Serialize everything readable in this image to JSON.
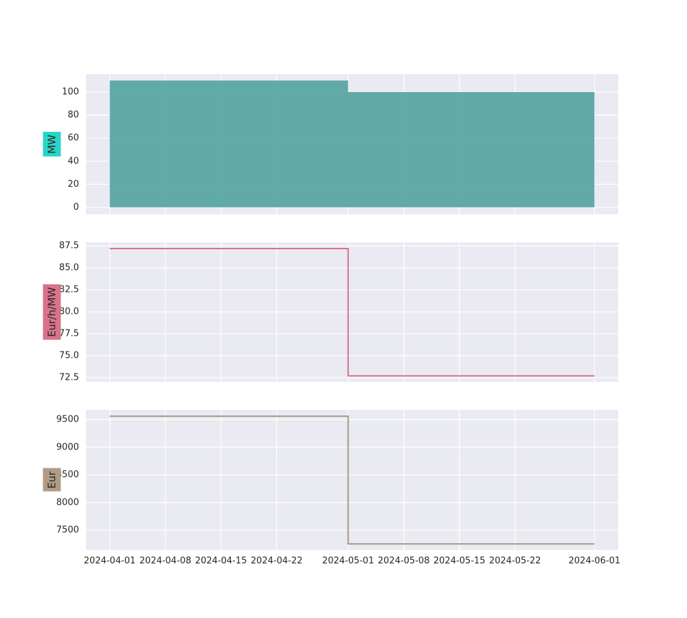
{
  "chart_data": [
    {
      "type": "area",
      "ylabel": "MW",
      "label_color": "#2ad4c8",
      "color": "#5aa6a4",
      "x": [
        "2024-04-01",
        "2024-05-01",
        "2024-06-01"
      ],
      "values": [
        110,
        100,
        100
      ],
      "xlim": [
        "2024-03-29",
        "2024-06-04"
      ],
      "ylim": [
        -6,
        115.5
      ],
      "yticks": [
        0,
        20,
        40,
        60,
        80,
        100
      ],
      "grid": true
    },
    {
      "type": "line",
      "ylabel": "Eur/h/MW",
      "label_color": "#d9738a",
      "color": "#d9708a",
      "x": [
        "2024-04-01",
        "2024-05-01",
        "2024-06-01"
      ],
      "values": [
        87.2,
        72.7,
        72.7
      ],
      "xlim": [
        "2024-03-29",
        "2024-06-04"
      ],
      "ylim": [
        72.03,
        87.9
      ],
      "yticks": [
        72.5,
        {
          "value": 75,
          "label": "75.0"
        },
        77.5,
        {
          "value": 80,
          "label": "80.0"
        },
        82.5,
        {
          "value": 85,
          "label": "85.0"
        },
        87.5
      ],
      "grid": true
    },
    {
      "type": "line",
      "ylabel": "Eur",
      "label_color": "#b09c85",
      "color": "#a89886",
      "x": [
        "2024-04-01",
        "2024-05-01",
        "2024-06-01"
      ],
      "values": [
        9560,
        7250,
        7250
      ],
      "xlim": [
        "2024-03-29",
        "2024-06-04"
      ],
      "ylim": [
        7140,
        9674
      ],
      "yticks": [
        7500,
        8000,
        8500,
        9000,
        9500
      ],
      "xticks": [
        "2024-04-01",
        "2024-04-08",
        "2024-04-15",
        "2024-04-22",
        "2024-05-01",
        "2024-05-08",
        "2024-05-15",
        "2024-05-22",
        "2024-06-01"
      ],
      "grid": true
    }
  ]
}
